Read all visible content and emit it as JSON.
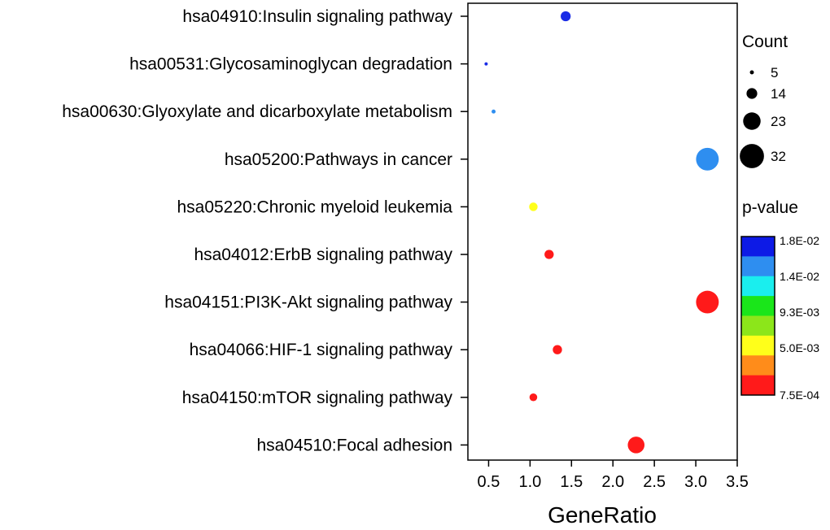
{
  "chart_data": {
    "type": "scatter",
    "title": "",
    "xlabel": "GeneRatio",
    "ylabel": "",
    "xlim": [
      0.25,
      3.5
    ],
    "xticks": [
      0.5,
      1.0,
      1.5,
      2.0,
      2.5,
      3.0,
      3.5
    ],
    "xtick_labels": [
      "0.5",
      "1.0",
      "1.5",
      "2.0",
      "2.5",
      "3.0",
      "3.5"
    ],
    "categories": [
      "hsa04910:Insulin signaling pathway",
      "hsa00531:Glycosaminoglycan degradation",
      "hsa00630:Glyoxylate and dicarboxylate metabolism",
      "hsa05200:Pathways in cancer",
      "hsa05220:Chronic myeloid leukemia",
      "hsa04012:ErbB signaling pathway",
      "hsa04151:PI3K-Akt signaling pathway",
      "hsa04066:HIF-1 signaling pathway",
      "hsa04150:mTOR signaling pathway",
      "hsa04510:Focal adhesion"
    ],
    "points": [
      {
        "category": "hsa04910:Insulin signaling pathway",
        "gene_ratio": 1.43,
        "count": 13,
        "color": "#1a2ce6"
      },
      {
        "category": "hsa00531:Glycosaminoglycan degradation",
        "gene_ratio": 0.47,
        "count": 4,
        "color": "#1a2ce6"
      },
      {
        "category": "hsa00630:Glyoxylate and dicarboxylate metabolism",
        "gene_ratio": 0.56,
        "count": 5,
        "color": "#2e8ef0"
      },
      {
        "category": "hsa05200:Pathways in cancer",
        "gene_ratio": 3.14,
        "count": 30,
        "color": "#2e8ef0"
      },
      {
        "category": "hsa05220:Chronic myeloid leukemia",
        "gene_ratio": 1.04,
        "count": 11,
        "color": "#ffff1a"
      },
      {
        "category": "hsa04012:ErbB signaling pathway",
        "gene_ratio": 1.23,
        "count": 12,
        "color": "#ff1a1a"
      },
      {
        "category": "hsa04151:PI3K-Akt signaling pathway",
        "gene_ratio": 3.14,
        "count": 30,
        "color": "#ff1a1a"
      },
      {
        "category": "hsa04066:HIF-1 signaling pathway",
        "gene_ratio": 1.33,
        "count": 12,
        "color": "#ff1a1a"
      },
      {
        "category": "hsa04150:mTOR signaling pathway",
        "gene_ratio": 1.04,
        "count": 10,
        "color": "#ff1a1a"
      },
      {
        "category": "hsa04510:Focal adhesion",
        "gene_ratio": 2.28,
        "count": 22,
        "color": "#ff1a1a"
      }
    ],
    "size_legend": {
      "title": "Count",
      "entries": [
        {
          "label": "5",
          "value": 5
        },
        {
          "label": "14",
          "value": 14
        },
        {
          "label": "23",
          "value": 23
        },
        {
          "label": "32",
          "value": 32
        }
      ]
    },
    "color_legend": {
      "title": "p-value",
      "bands_top_to_bottom": [
        "#0d1ae6",
        "#2e8ef0",
        "#1aeeee",
        "#1ae61a",
        "#8ce61a",
        "#ffff1a",
        "#ff8c1a",
        "#ff1a1a"
      ],
      "tick_labels": [
        "1.8E-02",
        "1.4E-02",
        "9.3E-03",
        "5.0E-03",
        "7.5E-04"
      ]
    }
  }
}
